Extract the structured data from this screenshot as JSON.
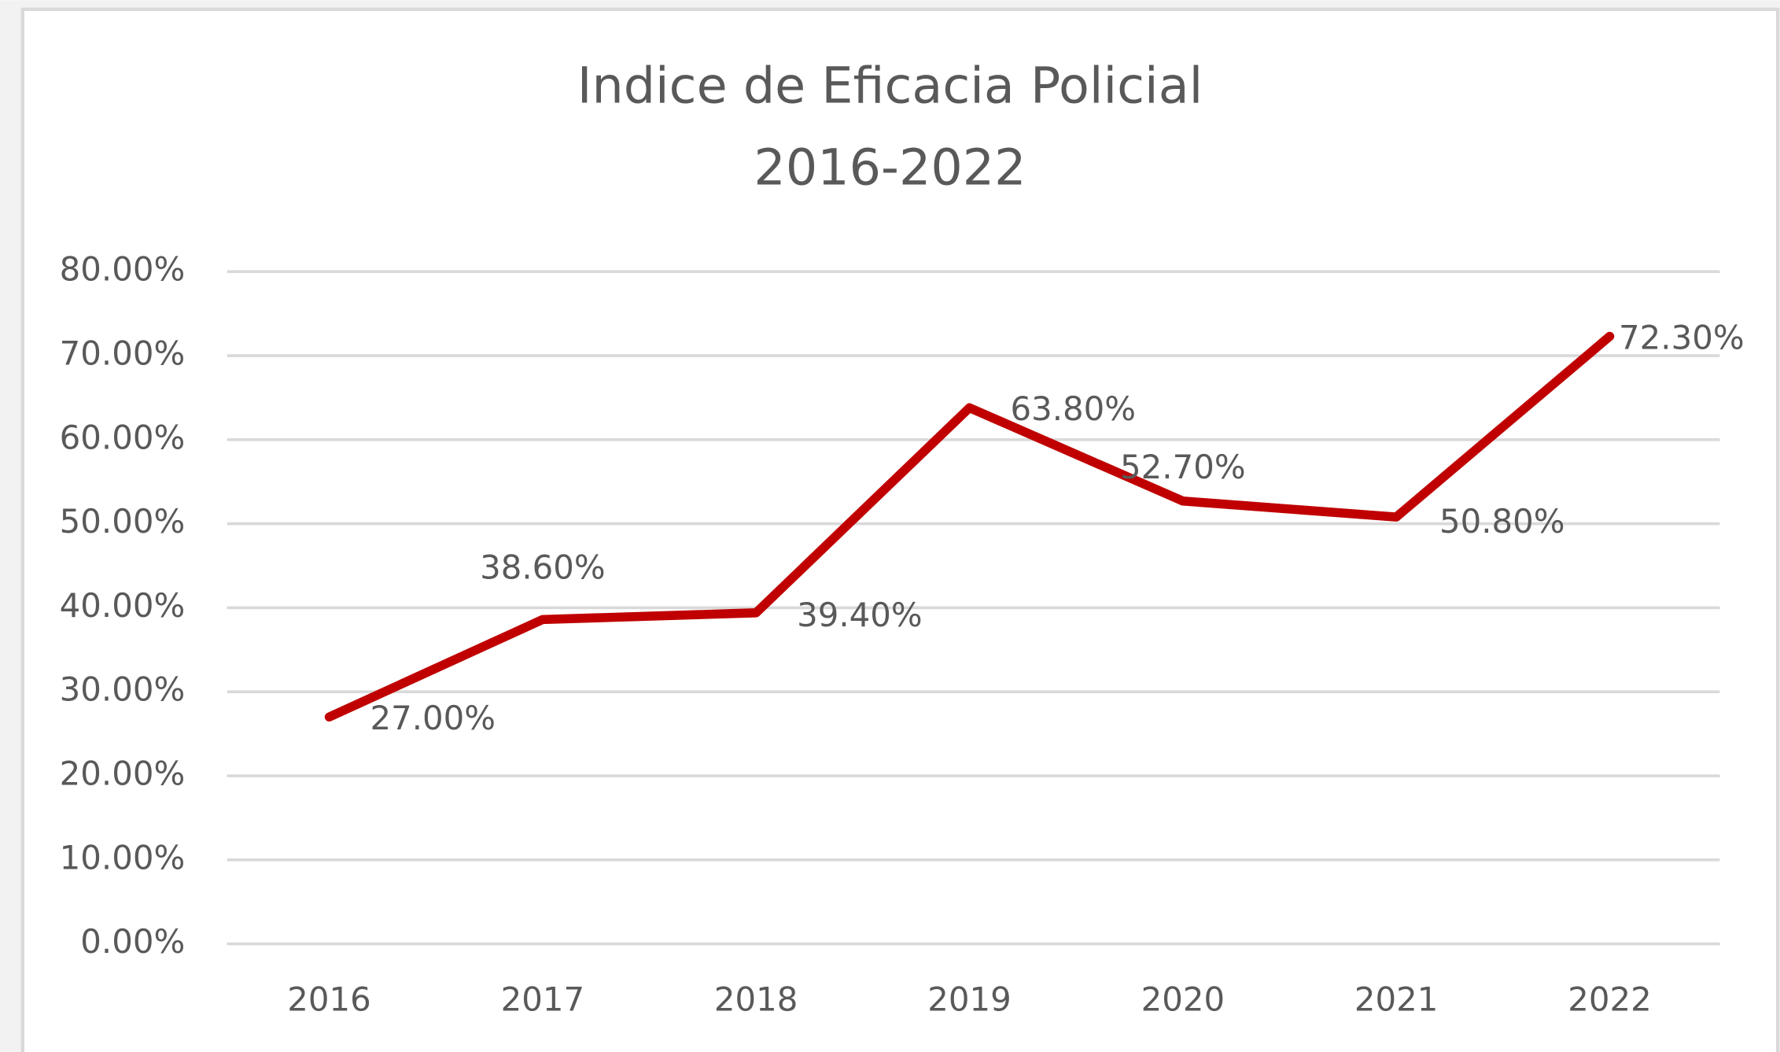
{
  "chart_data": {
    "type": "line",
    "title": "Indice de Eficacia Policial",
    "subtitle": "2016-2022",
    "categories": [
      "2016",
      "2017",
      "2018",
      "2019",
      "2020",
      "2021",
      "2022"
    ],
    "series": [
      {
        "name": "Indice de Eficacia Policial",
        "color": "#c00000",
        "values": [
          27.0,
          38.6,
          39.4,
          63.8,
          52.7,
          50.8,
          72.3
        ],
        "value_labels": [
          "27.00%",
          "38.60%",
          "39.40%",
          "63.80%",
          "52.70%",
          "50.80%",
          "72.30%"
        ]
      }
    ],
    "ylim": [
      0,
      80
    ],
    "yticks": [
      {
        "value": 0,
        "label": "0.00%"
      },
      {
        "value": 10,
        "label": "10.00%"
      },
      {
        "value": 20,
        "label": "20.00%"
      },
      {
        "value": 30,
        "label": "30.00%"
      },
      {
        "value": 40,
        "label": "40.00%"
      },
      {
        "value": 50,
        "label": "50.00%"
      },
      {
        "value": 60,
        "label": "60.00%"
      },
      {
        "value": 70,
        "label": "70.00%"
      },
      {
        "value": 80,
        "label": "80.00%"
      }
    ],
    "grid": true,
    "legend": false
  }
}
